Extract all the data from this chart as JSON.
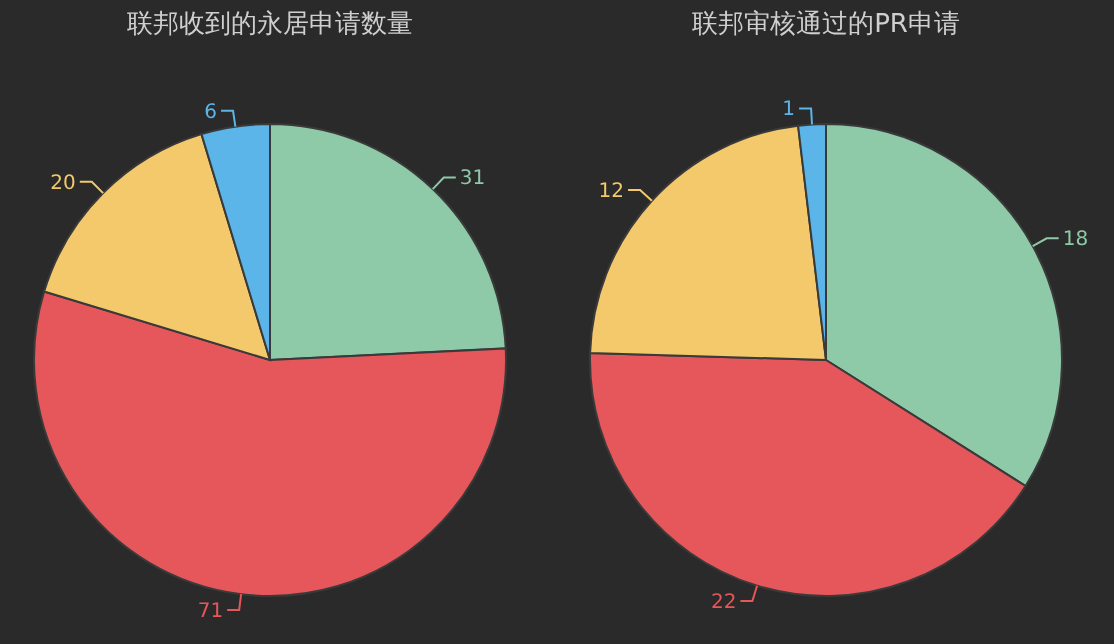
{
  "chart_data": [
    {
      "type": "pie",
      "title": "联邦收到的永居申请数量",
      "categories": [
        null,
        null,
        null,
        null
      ],
      "values": [
        31,
        71,
        20,
        6
      ],
      "colors": [
        "#8ec9a8",
        "#e5575a",
        "#f3c96b",
        "#5bb5e8"
      ],
      "data_labels": true
    },
    {
      "type": "pie",
      "title": "联邦审核通过的PR申请",
      "categories": [
        null,
        null,
        null,
        null
      ],
      "values": [
        18,
        22,
        12,
        1
      ],
      "colors": [
        "#8ec9a8",
        "#e5575a",
        "#f3c96b",
        "#5bb5e8"
      ],
      "data_labels": true
    }
  ]
}
